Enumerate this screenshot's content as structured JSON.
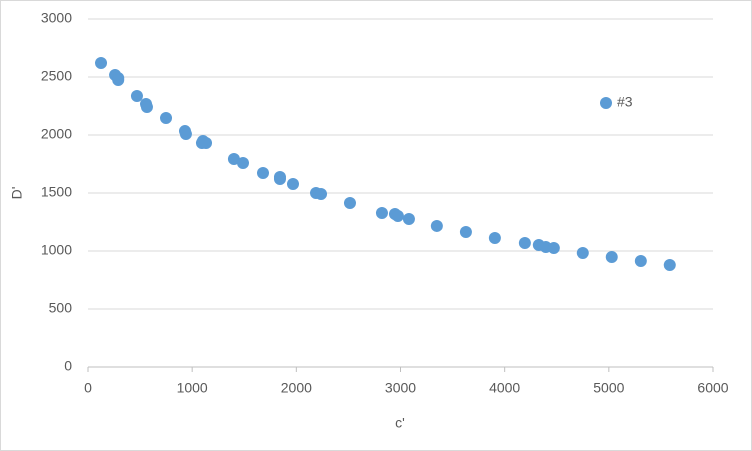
{
  "chart_data": {
    "type": "scatter",
    "x_label": "c'",
    "y_label": "D'",
    "xlim": [
      0,
      6000
    ],
    "xticks": [
      0,
      1000,
      2000,
      3000,
      4000,
      5000,
      6000
    ],
    "ylim": [
      0,
      3000
    ],
    "yticks": [
      0,
      500,
      1000,
      1500,
      2000,
      2500,
      3000
    ],
    "grid": true,
    "legend": "upper right",
    "series": [
      {
        "name": "#3",
        "color": "#5b9bd5",
        "x": [
          125,
          260,
          290,
          290,
          470,
          557,
          566,
          749,
          931,
          940,
          1104,
          1133,
          1094,
          1401,
          1488,
          1680,
          1843,
          1843,
          1968,
          2189,
          2237,
          2515,
          2822,
          2947,
          2975,
          3081,
          3349,
          3628,
          3906,
          4194,
          4328,
          4395,
          4472,
          4750,
          5028,
          5307,
          5585
        ],
        "values": [
          2621,
          2517,
          2491,
          2474,
          2336,
          2267,
          2241,
          2147,
          2034,
          2009,
          1948,
          1931,
          1931,
          1793,
          1759,
          1672,
          1638,
          1621,
          1578,
          1500,
          1491,
          1414,
          1328,
          1319,
          1302,
          1276,
          1216,
          1164,
          1112,
          1069,
          1052,
          1034,
          1026,
          983,
          948,
          914,
          879
        ]
      }
    ]
  }
}
